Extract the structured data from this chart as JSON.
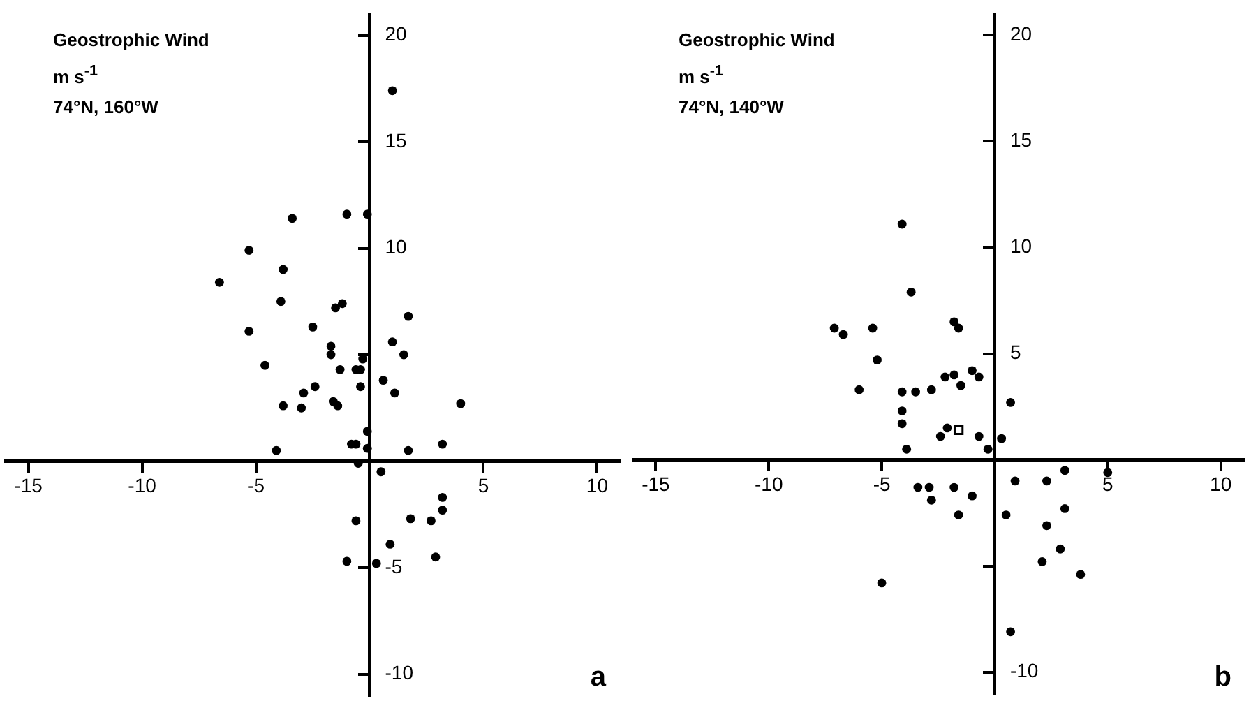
{
  "chart_data": [
    {
      "type": "scatter",
      "title": "Geostrophic Wind",
      "subtitle": "m s$^{-1}$",
      "annotations": [
        "74°N, 160°W",
        "a"
      ],
      "series": [
        {
          "color": "#000000",
          "marker": "circle",
          "x": [
            1.0,
            -3.4,
            -1.0,
            -0.1,
            -5.3,
            -3.8,
            -6.6,
            -3.9,
            -1.5,
            -1.2,
            1.7,
            -5.3,
            -2.5,
            -1.7,
            1.0,
            -4.6,
            -1.7,
            -0.3,
            -1.3,
            -0.6,
            -0.4,
            1.5,
            -2.4,
            -2.9,
            -0.4,
            0.6,
            1.1,
            -3.8,
            -3.0,
            -1.6,
            -1.4,
            4.0,
            -0.1,
            -0.8,
            -0.6,
            -0.1,
            -4.1,
            1.7,
            3.2,
            -0.5,
            0.5,
            3.2,
            3.2,
            1.8,
            2.7,
            -0.6,
            0.9,
            2.9,
            -1.0,
            0.3
          ],
          "values": [
            17.4,
            11.4,
            11.6,
            11.6,
            9.9,
            9.0,
            8.4,
            7.5,
            7.2,
            7.4,
            6.8,
            6.1,
            6.3,
            5.4,
            5.6,
            4.5,
            5.0,
            4.8,
            4.3,
            4.3,
            4.3,
            5.0,
            3.5,
            3.2,
            3.5,
            3.8,
            3.2,
            2.6,
            2.5,
            2.8,
            2.6,
            2.7,
            1.4,
            0.8,
            0.8,
            0.6,
            0.5,
            0.5,
            0.8,
            -0.1,
            -0.5,
            -1.7,
            -2.3,
            -2.7,
            -2.8,
            -2.8,
            -3.9,
            -4.5,
            -4.7,
            -4.8
          ]
        }
      ],
      "xlim": [
        -16,
        11
      ],
      "ylim": [
        -11,
        21
      ],
      "xticks": [
        -15,
        -10,
        -5,
        5,
        10
      ],
      "yticks": [
        -10,
        -5,
        {
          "value": 5,
          "label": null
        },
        10,
        15,
        20
      ],
      "grid": false,
      "legend": false
    },
    {
      "type": "scatter",
      "title": "Geostrophic Wind",
      "subtitle": "m s$^{-1}$",
      "annotations": [
        "74°N, 140°W",
        "b"
      ],
      "series": [
        {
          "color": "#000000",
          "marker": "circle",
          "x": [
            -4.1,
            -3.7,
            -7.1,
            -6.7,
            -5.4,
            -1.8,
            -1.6,
            -5.2,
            -6.0,
            -4.1,
            -3.5,
            -2.8,
            -2.2,
            -1.8,
            -1.5,
            -1.0,
            -0.7,
            0.7,
            -4.1,
            -4.1,
            -2.4,
            -2.1,
            -0.7,
            0.3,
            -0.3,
            -3.9,
            3.1,
            5.0,
            -3.4,
            -2.9,
            -2.8,
            -1.8,
            -1.0,
            -1.6,
            0.9,
            2.3,
            3.1,
            0.5,
            2.3,
            2.9,
            2.1,
            3.8,
            -5.0,
            0.7
          ],
          "values": [
            11.1,
            7.9,
            6.2,
            5.9,
            6.2,
            6.5,
            6.2,
            4.7,
            3.3,
            3.2,
            3.2,
            3.3,
            3.9,
            4.0,
            3.5,
            4.2,
            3.9,
            2.7,
            2.3,
            1.7,
            1.1,
            1.5,
            1.1,
            1.0,
            0.5,
            0.5,
            -0.5,
            -0.6,
            -1.3,
            -1.3,
            -1.9,
            -1.3,
            -1.7,
            -2.6,
            -1.0,
            -1.0,
            -2.3,
            -2.6,
            -3.1,
            -4.2,
            -4.8,
            -5.4,
            -5.8,
            -8.1
          ]
        },
        {
          "color": "#000000",
          "marker": "square",
          "x": [
            -1.6
          ],
          "values": [
            1.4
          ]
        }
      ],
      "xlim": [
        -16,
        11
      ],
      "ylim": [
        -11,
        21
      ],
      "xticks": [
        -15,
        -10,
        -5,
        5,
        10
      ],
      "yticks": [
        -10,
        {
          "value": -5,
          "label": null
        },
        5,
        10,
        15,
        20
      ],
      "grid": false,
      "legend": false
    }
  ]
}
